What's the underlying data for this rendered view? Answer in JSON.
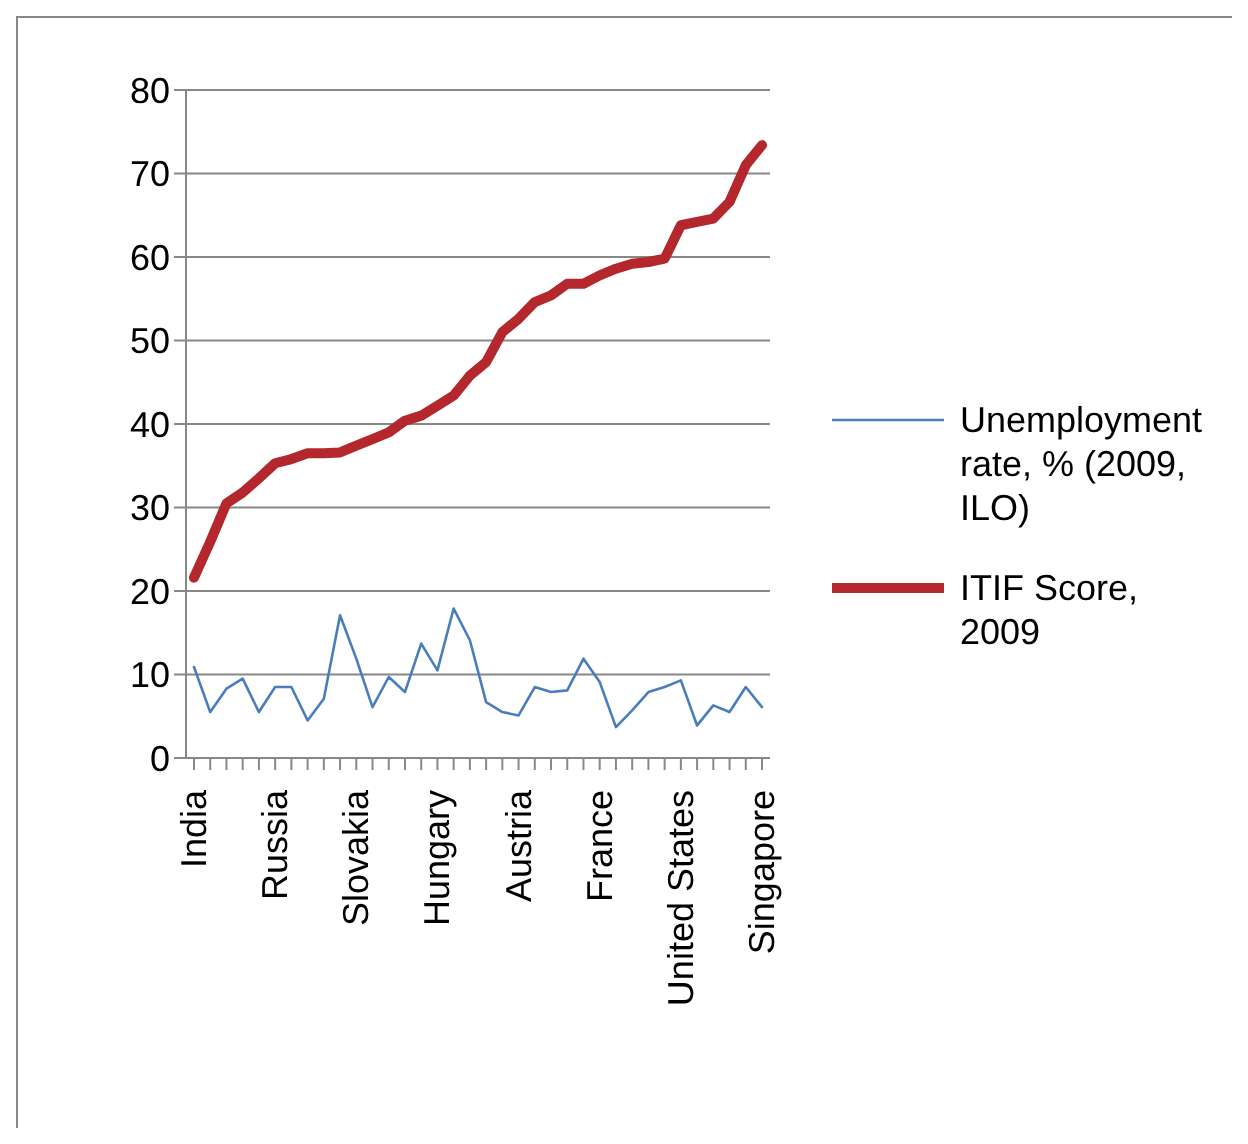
{
  "chart_data": {
    "type": "line",
    "categories": [
      "India",
      null,
      null,
      null,
      null,
      "Russia",
      null,
      null,
      null,
      null,
      "Slovakia",
      null,
      null,
      null,
      null,
      "Hungary",
      null,
      null,
      null,
      null,
      "Austria",
      null,
      null,
      null,
      null,
      "France",
      null,
      null,
      null,
      null,
      "United States",
      null,
      null,
      null,
      null,
      "Singapore"
    ],
    "series": [
      {
        "name": "Unemployment rate, % (2009, ILO)",
        "color": "#4a7ebb",
        "values": [
          10.9,
          5.5,
          8.3,
          9.5,
          5.5,
          8.5,
          8.5,
          4.5,
          7.1,
          17.1,
          11.9,
          6.1,
          9.7,
          7.9,
          13.7,
          10.5,
          17.9,
          14.1,
          6.7,
          5.5,
          5.1,
          8.5,
          7.9,
          8.1,
          11.9,
          9.1,
          3.7,
          5.7,
          7.9,
          8.5,
          9.3,
          3.9,
          6.3,
          5.5,
          8.5,
          6.1
        ]
      },
      {
        "name": "ITIF Score, 2009",
        "color": "#b3272d",
        "values": [
          21.6,
          25.9,
          30.5,
          31.8,
          33.5,
          35.3,
          35.8,
          36.5,
          36.5,
          36.6,
          37.4,
          38.2,
          39.0,
          40.4,
          41.0,
          42.2,
          43.4,
          45.8,
          47.4,
          51.0,
          52.6,
          54.6,
          55.4,
          56.8,
          56.8,
          57.8,
          58.6,
          59.2,
          59.4,
          59.8,
          63.8,
          64.2,
          64.6,
          66.6,
          71.0,
          73.4
        ]
      }
    ],
    "ylim": [
      0,
      80
    ],
    "yticks": [
      0,
      10,
      20,
      30,
      40,
      50,
      60,
      70,
      80
    ],
    "grid": "y",
    "legend": "right",
    "marker": "none",
    "line_style": "solid"
  }
}
